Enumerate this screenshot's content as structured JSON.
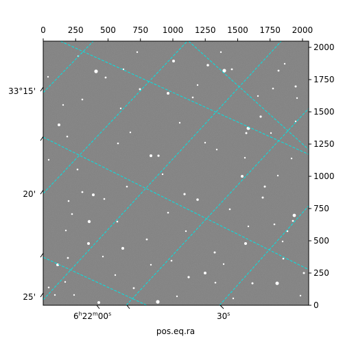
{
  "chart_data": {
    "type": "image",
    "colormap": "gray",
    "xlabel": "pos.eq.ra",
    "ylabel": "",
    "title": "",
    "xlim": [
      0,
      2048
    ],
    "ylim": [
      0,
      2048
    ],
    "pixel_axes": {
      "x_ticks": [
        0,
        250,
        500,
        750,
        1000,
        1250,
        1500,
        1750,
        2000
      ],
      "y_ticks": [
        0,
        250,
        500,
        750,
        1000,
        1250,
        1500,
        1750,
        2000
      ]
    },
    "world_axes": {
      "ra_tick_labels": [
        {
          "value": "6h22m00s",
          "hours": "6",
          "minutes": "22",
          "seconds": "00"
        },
        {
          "value": "30s",
          "seconds": "30"
        }
      ],
      "dec_tick_labels": [
        "33°15'",
        "20'",
        "25'"
      ]
    },
    "grid": true,
    "grid_color": "#00e5e5",
    "background_color": "#7f7f7f",
    "star_color": "#ffffff"
  }
}
